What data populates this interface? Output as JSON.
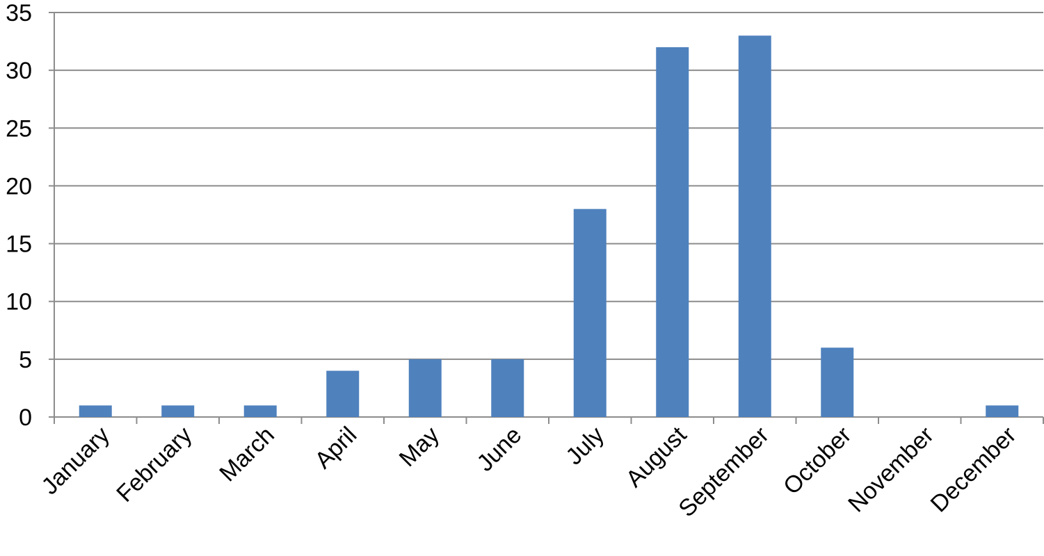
{
  "chart_data": {
    "type": "bar",
    "categories": [
      "January",
      "February",
      "March",
      "April",
      "May",
      "June",
      "July",
      "August",
      "September",
      "October",
      "November",
      "December"
    ],
    "values": [
      1,
      1,
      1,
      4,
      5,
      5,
      18,
      32,
      33,
      6,
      0,
      1
    ],
    "color": "#4f81bd",
    "ylim": [
      0,
      35
    ],
    "yticks": [
      0,
      5,
      10,
      15,
      20,
      25,
      30,
      35
    ],
    "grid": true
  }
}
